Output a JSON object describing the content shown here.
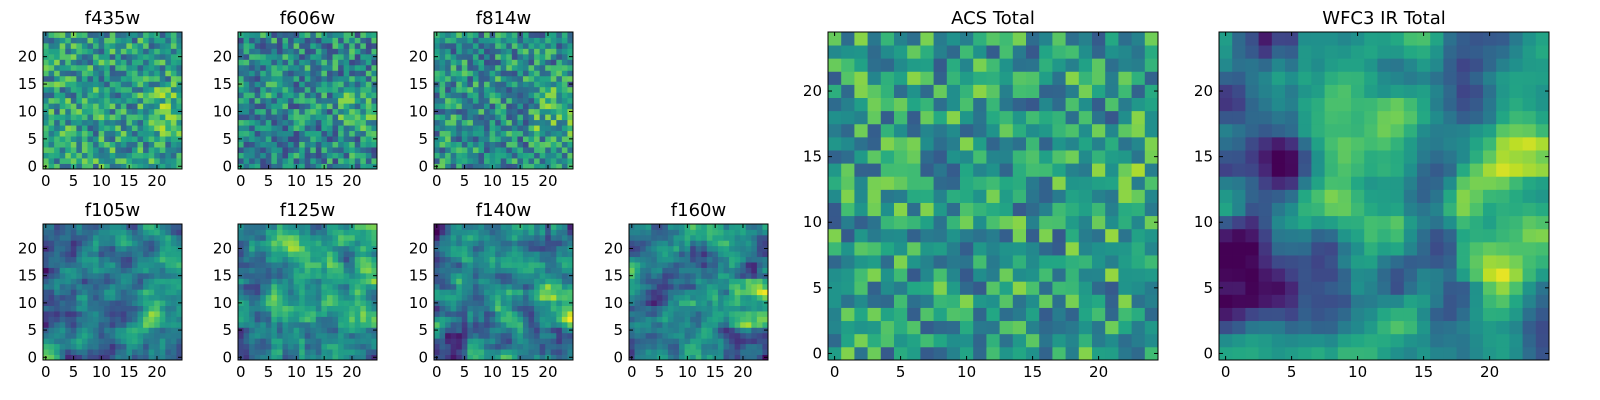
{
  "chart_data": {
    "type": "heatmap",
    "colormap": "viridis",
    "grid_size": 25,
    "panels": [
      {
        "id": "f435w",
        "title": "f435w",
        "xticks": [
          0,
          5,
          10,
          15,
          20
        ],
        "yticks": [
          0,
          5,
          10,
          15,
          20
        ],
        "smooth": 0,
        "bias": 0.55,
        "spread": 0.55,
        "seed": 11
      },
      {
        "id": "f606w",
        "title": "f606w",
        "xticks": [
          0,
          5,
          10,
          15,
          20
        ],
        "yticks": [
          0,
          5,
          10,
          15,
          20
        ],
        "smooth": 0,
        "bias": 0.48,
        "spread": 0.55,
        "seed": 23
      },
      {
        "id": "f814w",
        "title": "f814w",
        "xticks": [
          0,
          5,
          10,
          15,
          20
        ],
        "yticks": [
          0,
          5,
          10,
          15,
          20
        ],
        "smooth": 0,
        "bias": 0.5,
        "spread": 0.55,
        "seed": 37
      },
      {
        "id": "f105w",
        "title": "f105w",
        "xticks": [
          0,
          5,
          10,
          15,
          20
        ],
        "yticks": [
          0,
          5,
          10,
          15,
          20
        ],
        "smooth": 1,
        "bias": 0.5,
        "spread": 0.75,
        "seed": 41
      },
      {
        "id": "f125w",
        "title": "f125w",
        "xticks": [
          0,
          5,
          10,
          15,
          20
        ],
        "yticks": [
          0,
          5,
          10,
          15,
          20
        ],
        "smooth": 1,
        "bias": 0.5,
        "spread": 0.75,
        "seed": 53
      },
      {
        "id": "f140w",
        "title": "f140w",
        "xticks": [
          0,
          5,
          10,
          15,
          20
        ],
        "yticks": [
          0,
          5,
          10,
          15,
          20
        ],
        "smooth": 1,
        "bias": 0.48,
        "spread": 0.8,
        "seed": 67
      },
      {
        "id": "f160w",
        "title": "f160w",
        "xticks": [
          0,
          5,
          10,
          15,
          20
        ],
        "yticks": [
          0,
          5,
          10,
          15,
          20
        ],
        "smooth": 1,
        "bias": 0.45,
        "spread": 0.85,
        "seed": 79
      },
      {
        "id": "acs",
        "title": "ACS Total",
        "xticks": [
          0,
          5,
          10,
          15,
          20
        ],
        "yticks": [
          0,
          5,
          10,
          15,
          20
        ],
        "smooth": 0,
        "bias": 0.55,
        "spread": 0.55,
        "seed": 83
      },
      {
        "id": "wfc3",
        "title": "WFC3 IR Total",
        "xticks": [
          0,
          5,
          10,
          15,
          20
        ],
        "yticks": [
          0,
          5,
          10,
          15,
          20
        ],
        "smooth": 2,
        "bias": 0.45,
        "spread": 0.95,
        "seed": 97
      }
    ],
    "bright_region": {
      "x": [
        18,
        24
      ],
      "y": [
        6,
        14
      ]
    },
    "dark_region": {
      "x": [
        0,
        5
      ],
      "y": [
        0,
        24
      ]
    }
  }
}
